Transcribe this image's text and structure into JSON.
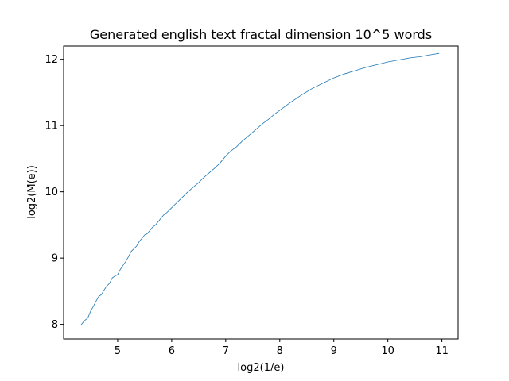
{
  "chart_data": {
    "type": "line",
    "title": "Generated english text fractal dimension 10^5 words",
    "xlabel": "log2(1/e)",
    "ylabel": "log2(M(e))",
    "xlim": [
      4.0,
      11.3
    ],
    "ylim": [
      7.78,
      12.2
    ],
    "xticks": [
      5,
      6,
      7,
      8,
      9,
      10,
      11
    ],
    "yticks": [
      8,
      9,
      10,
      11,
      12
    ],
    "grid": false,
    "line_color": "#1f77b4",
    "series": [
      {
        "x": [
          4.32,
          4.38,
          4.45,
          4.5,
          4.55,
          4.6,
          4.65,
          4.7,
          4.75,
          4.8,
          4.85,
          4.9,
          4.95,
          5.0,
          5.05,
          5.1,
          5.15,
          5.2,
          5.25,
          5.3,
          5.35,
          5.4,
          5.45,
          5.5,
          5.55,
          5.6,
          5.65,
          5.7,
          5.75,
          5.8,
          5.85,
          5.9,
          5.95,
          6.0,
          6.1,
          6.2,
          6.3,
          6.4,
          6.5,
          6.6,
          6.7,
          6.8,
          6.9,
          7.0,
          7.1,
          7.2,
          7.3,
          7.4,
          7.5,
          7.6,
          7.7,
          7.8,
          7.9,
          8.0,
          8.2,
          8.4,
          8.6,
          8.8,
          9.0,
          9.2,
          9.4,
          9.6,
          9.8,
          10.0,
          10.2,
          10.4,
          10.6,
          10.8,
          10.95
        ],
        "y": [
          7.99,
          8.05,
          8.1,
          8.2,
          8.27,
          8.35,
          8.42,
          8.45,
          8.52,
          8.58,
          8.62,
          8.7,
          8.73,
          8.75,
          8.83,
          8.89,
          8.95,
          9.02,
          9.1,
          9.14,
          9.18,
          9.25,
          9.3,
          9.35,
          9.37,
          9.42,
          9.47,
          9.5,
          9.55,
          9.6,
          9.65,
          9.68,
          9.72,
          9.76,
          9.84,
          9.92,
          10.0,
          10.07,
          10.14,
          10.22,
          10.29,
          10.36,
          10.44,
          10.54,
          10.62,
          10.68,
          10.76,
          10.83,
          10.9,
          10.97,
          11.04,
          11.1,
          11.17,
          11.23,
          11.35,
          11.46,
          11.56,
          11.64,
          11.72,
          11.78,
          11.83,
          11.88,
          11.92,
          11.96,
          11.99,
          12.02,
          12.04,
          12.07,
          12.09
        ]
      }
    ]
  }
}
